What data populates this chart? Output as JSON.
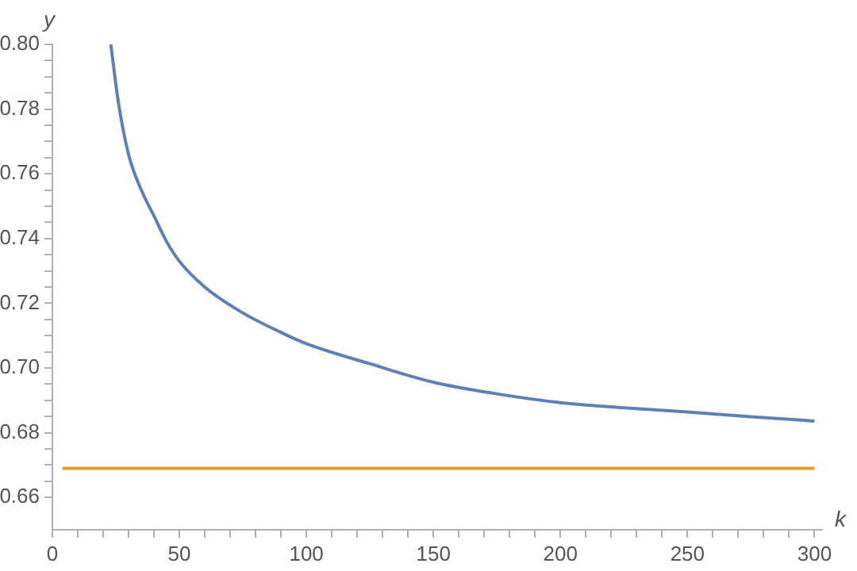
{
  "chart_data": {
    "type": "line",
    "xlabel": "k",
    "ylabel": "y",
    "xlim": [
      0,
      303
    ],
    "ylim": [
      0.65,
      0.8
    ],
    "xticks": [
      0,
      {
        "value": 10,
        "label": null
      },
      {
        "value": 20,
        "label": null
      },
      {
        "value": 30,
        "label": null
      },
      {
        "value": 40,
        "label": null
      },
      50,
      {
        "value": 60,
        "label": null
      },
      {
        "value": 70,
        "label": null
      },
      {
        "value": 80,
        "label": null
      },
      {
        "value": 90,
        "label": null
      },
      100,
      {
        "value": 110,
        "label": null
      },
      {
        "value": 120,
        "label": null
      },
      {
        "value": 130,
        "label": null
      },
      {
        "value": 140,
        "label": null
      },
      150,
      {
        "value": 160,
        "label": null
      },
      {
        "value": 170,
        "label": null
      },
      {
        "value": 180,
        "label": null
      },
      {
        "value": 190,
        "label": null
      },
      200,
      {
        "value": 210,
        "label": null
      },
      {
        "value": 220,
        "label": null
      },
      {
        "value": 230,
        "label": null
      },
      {
        "value": 240,
        "label": null
      },
      250,
      {
        "value": 260,
        "label": null
      },
      {
        "value": 270,
        "label": null
      },
      {
        "value": 280,
        "label": null
      },
      {
        "value": 290,
        "label": null
      },
      300
    ],
    "yticks": [
      {
        "value": 0.66,
        "label": "0.66"
      },
      {
        "value": 0.665,
        "label": null
      },
      {
        "value": 0.67,
        "label": null
      },
      {
        "value": 0.675,
        "label": null
      },
      {
        "value": 0.68,
        "label": "0.68"
      },
      {
        "value": 0.685,
        "label": null
      },
      {
        "value": 0.69,
        "label": null
      },
      {
        "value": 0.695,
        "label": null
      },
      {
        "value": 0.7,
        "label": "0.70"
      },
      {
        "value": 0.705,
        "label": null
      },
      {
        "value": 0.71,
        "label": null
      },
      {
        "value": 0.715,
        "label": null
      },
      {
        "value": 0.72,
        "label": "0.72"
      },
      {
        "value": 0.725,
        "label": null
      },
      {
        "value": 0.73,
        "label": null
      },
      {
        "value": 0.735,
        "label": null
      },
      {
        "value": 0.74,
        "label": "0.74"
      },
      {
        "value": 0.745,
        "label": null
      },
      {
        "value": 0.75,
        "label": null
      },
      {
        "value": 0.755,
        "label": null
      },
      {
        "value": 0.76,
        "label": "0.76"
      },
      {
        "value": 0.765,
        "label": null
      },
      {
        "value": 0.77,
        "label": null
      },
      {
        "value": 0.775,
        "label": null
      },
      {
        "value": 0.78,
        "label": "0.78"
      },
      {
        "value": 0.785,
        "label": null
      },
      {
        "value": 0.79,
        "label": null
      },
      {
        "value": 0.795,
        "label": null
      },
      {
        "value": 0.8,
        "label": "0.80"
      }
    ],
    "grid": false,
    "legend": false,
    "marker": "none",
    "line_style": "solid",
    "series": [
      {
        "color": "#5e81b5",
        "x": [
          23,
          26,
          30,
          35,
          40,
          45,
          50,
          60,
          75,
          90,
          100,
          125,
          150,
          175,
          200,
          225,
          250,
          275,
          300
        ],
        "values": [
          0.8,
          0.782,
          0.766,
          0.755,
          0.747,
          0.739,
          0.733,
          0.725,
          0.717,
          0.711,
          0.7075,
          0.7013,
          0.6956,
          0.692,
          0.6893,
          0.6877,
          0.6864,
          0.6849,
          0.6836
        ]
      },
      {
        "color": "#e19c24",
        "x": [
          4,
          300
        ],
        "values": [
          0.669,
          0.669
        ]
      }
    ]
  }
}
